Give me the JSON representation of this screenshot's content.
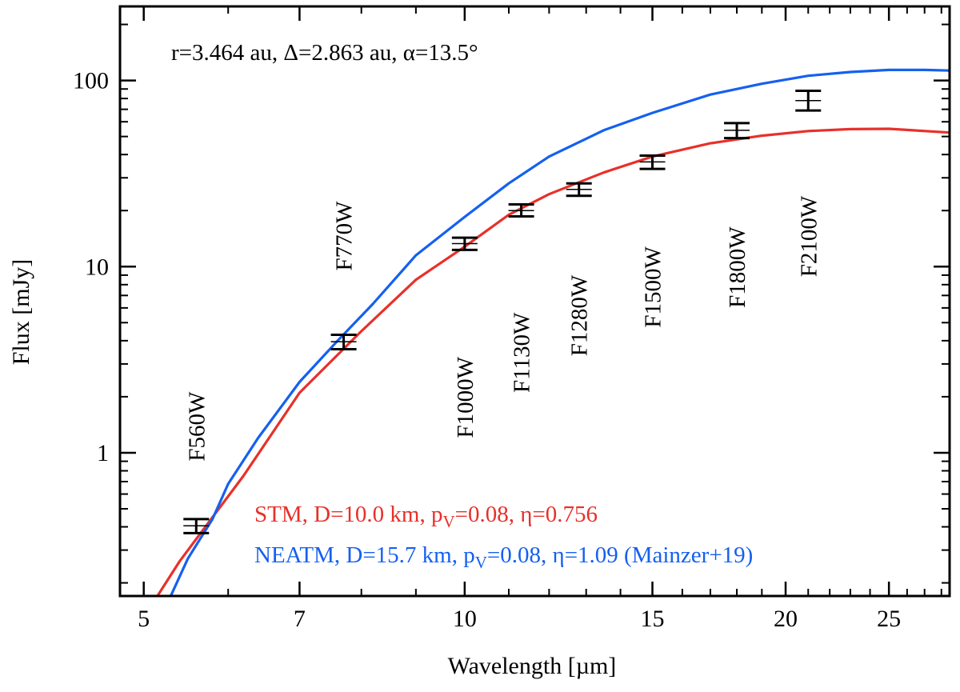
{
  "chart_data": {
    "type": "line",
    "title": "",
    "xlabel": "Wavelength [µm]",
    "ylabel": "Flux [mJy]",
    "xscale": "log",
    "yscale": "log",
    "xlim": [
      4.75,
      28.5
    ],
    "ylim": [
      0.17,
      250
    ],
    "x_ticks": [
      5,
      7,
      10,
      15,
      20,
      25
    ],
    "x_tick_labels": [
      "5",
      "7",
      "10",
      "15",
      "20",
      "25"
    ],
    "y_ticks": [
      1,
      10,
      100
    ],
    "y_tick_labels": [
      "1",
      "10",
      "100"
    ],
    "annotation": "r=3.464 au, Δ=2.863 au, α=13.5°",
    "colors": {
      "stm": "#e8302a",
      "neatm": "#1560f0",
      "data": "#000000"
    },
    "series": [
      {
        "name": "STM",
        "legend_parts": [
          "STM, D=10.0 km, p",
          "V",
          "=0.08, η=0.756"
        ],
        "x": [
          5.15,
          5.4,
          5.8,
          6.2,
          7.0,
          8.0,
          9.0,
          10.0,
          11.0,
          12.0,
          13.5,
          15.0,
          17.0,
          19.0,
          21.0,
          23.0,
          25.0,
          28.5
        ],
        "y": [
          0.17,
          0.26,
          0.45,
          0.75,
          2.1,
          4.5,
          8.5,
          12.8,
          19.0,
          24.5,
          32.0,
          39.0,
          46.0,
          50.5,
          53.5,
          54.8,
          55.0,
          52.5
        ]
      },
      {
        "name": "NEATM",
        "legend_parts": [
          "NEATM, D=15.7 km, p",
          "V",
          "=0.08, η=1.09 (Mainzer+19)"
        ],
        "x": [
          5.3,
          5.5,
          5.8,
          6.0,
          6.4,
          7.0,
          7.6,
          8.2,
          9.0,
          10.0,
          11.0,
          12.0,
          13.5,
          15.0,
          17.0,
          19.0,
          21.0,
          23.0,
          25.0,
          27.0,
          28.5
        ],
        "y": [
          0.17,
          0.27,
          0.44,
          0.68,
          1.2,
          2.4,
          4.0,
          6.3,
          11.5,
          18.5,
          28.0,
          39.0,
          54.0,
          67.0,
          84.0,
          96.0,
          106.0,
          111.0,
          114.0,
          114.0,
          113.0
        ]
      }
    ],
    "measurements": [
      {
        "filter": "F560W",
        "x": 5.6,
        "y": 0.405,
        "ylo": 0.37,
        "yhi": 0.44,
        "label_y": 0.9
      },
      {
        "filter": "F770W",
        "x": 7.7,
        "y": 3.95,
        "ylo": 3.6,
        "yhi": 4.3,
        "label_y": 9.5
      },
      {
        "filter": "F1000W",
        "x": 10.0,
        "y": 13.3,
        "ylo": 12.3,
        "yhi": 14.3,
        "label_y": 1.2
      },
      {
        "filter": "F1130W",
        "x": 11.3,
        "y": 20.0,
        "ylo": 18.6,
        "yhi": 21.6,
        "label_y": 2.1
      },
      {
        "filter": "F1280W",
        "x": 12.8,
        "y": 26.0,
        "ylo": 24.0,
        "yhi": 28.0,
        "label_y": 3.3
      },
      {
        "filter": "F1500W",
        "x": 15.0,
        "y": 36.5,
        "ylo": 33.5,
        "yhi": 39.5,
        "label_y": 4.7
      },
      {
        "filter": "F1800W",
        "x": 18.0,
        "y": 54.0,
        "ylo": 49.0,
        "yhi": 59.0,
        "label_y": 6.0
      },
      {
        "filter": "F2100W",
        "x": 21.0,
        "y": 78.0,
        "ylo": 69.0,
        "yhi": 88.0,
        "label_y": 8.8
      }
    ]
  }
}
